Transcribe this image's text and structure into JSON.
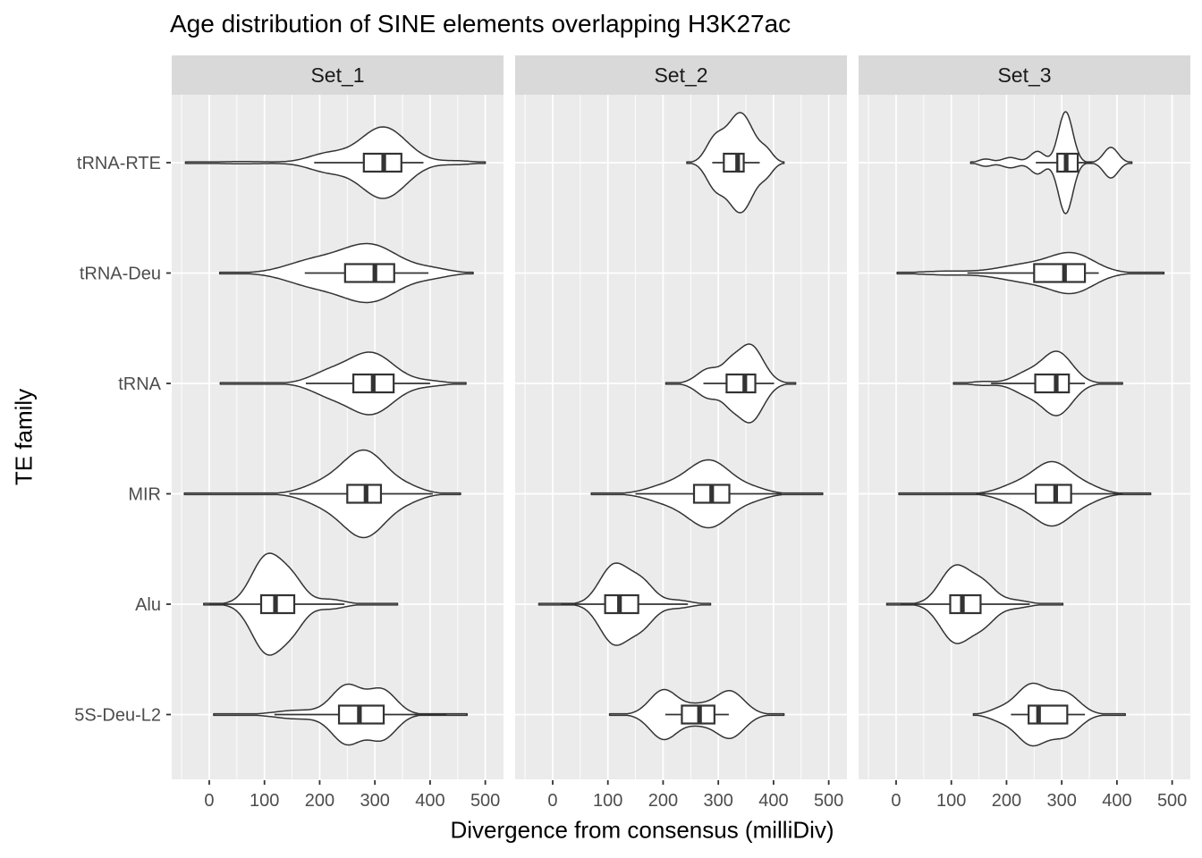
{
  "chart_data": {
    "type": "violin",
    "title": "Age distribution of SINE elements overlapping H3K27ac",
    "xlabel": "Divergence from consensus (milliDiv)",
    "ylabel": "TE family",
    "facets": [
      "Set_1",
      "Set_2",
      "Set_3"
    ],
    "categories": [
      "tRNA-RTE",
      "tRNA-Deu",
      "tRNA",
      "MIR",
      "Alu",
      "5S-Deu-L2"
    ],
    "x_ticks": [
      0,
      100,
      200,
      300,
      400,
      500
    ],
    "xlim": [
      -68,
      533
    ],
    "grid": {
      "major_every": 100,
      "minor_every": 50
    },
    "legend": "none",
    "colors": {
      "panel_bg": "#ebebeb",
      "strip_bg": "#d9d9d9",
      "grid": "#ffffff",
      "outline": "#333333",
      "violin_fill": "#ffffff",
      "tick_label": "#4d4d4d",
      "tick_mark": "#333333",
      "strip_text": "#1a1a1a",
      "title_text": "#000000"
    },
    "violins": [
      {
        "facet": "Set_1",
        "family": "tRNA-RTE",
        "range": [
          -43,
          500
        ],
        "peak_halfwidth": 40,
        "density": [
          [
            315,
            42,
            1.0
          ],
          [
            213,
            34,
            0.24
          ],
          [
            450,
            28,
            0.05
          ],
          [
            60,
            60,
            0.03
          ]
        ],
        "box": {
          "whisker_lo": 190,
          "q1": 280,
          "median": 316,
          "q3": 348,
          "whisker_hi": 388
        }
      },
      {
        "facet": "Set_1",
        "family": "tRNA-Deu",
        "range": [
          19,
          478
        ],
        "peak_halfwidth": 33,
        "density": [
          [
            290,
            52,
            1.0
          ],
          [
            185,
            48,
            0.4
          ],
          [
            405,
            32,
            0.13
          ]
        ],
        "box": {
          "whisker_lo": 173,
          "q1": 246,
          "median": 300,
          "q3": 335,
          "whisker_hi": 397
        }
      },
      {
        "facet": "Set_1",
        "family": "tRNA",
        "range": [
          20,
          465
        ],
        "peak_halfwidth": 35,
        "density": [
          [
            292,
            42,
            1.0
          ],
          [
            213,
            33,
            0.3
          ],
          [
            400,
            28,
            0.07
          ]
        ],
        "box": {
          "whisker_lo": 175,
          "q1": 261,
          "median": 297,
          "q3": 334,
          "whisker_hi": 400
        }
      },
      {
        "facet": "Set_1",
        "family": "MIR",
        "range": [
          -45,
          455
        ],
        "peak_halfwidth": 49,
        "density": [
          [
            281,
            40,
            1.0
          ],
          [
            203,
            36,
            0.2
          ],
          [
            362,
            28,
            0.12
          ]
        ],
        "box": {
          "whisker_lo": 145,
          "q1": 250,
          "median": 284,
          "q3": 311,
          "whisker_hi": 405
        }
      },
      {
        "facet": "Set_1",
        "family": "Alu",
        "range": [
          -10,
          341
        ],
        "peak_halfwidth": 57,
        "density": [
          [
            105,
            28,
            1.0
          ],
          [
            152,
            22,
            0.42
          ],
          [
            218,
            26,
            0.1
          ]
        ],
        "box": {
          "whisker_lo": 0,
          "q1": 94,
          "median": 120,
          "q3": 154,
          "whisker_hi": 245
        }
      },
      {
        "facet": "Set_1",
        "family": "5S-Deu-L2",
        "range": [
          8,
          467
        ],
        "peak_halfwidth": 34,
        "density": [
          [
            249,
            27,
            1.0
          ],
          [
            313,
            26,
            0.85
          ],
          [
            160,
            40,
            0.15
          ]
        ],
        "box": {
          "whisker_lo": 118,
          "q1": 235,
          "median": 272,
          "q3": 316,
          "whisker_hi": 430
        }
      },
      {
        "facet": "Set_2",
        "family": "tRNA-RTE",
        "range": [
          243,
          419
        ],
        "peak_halfwidth": 56,
        "density": [
          [
            340,
            24,
            1.0
          ],
          [
            293,
            16,
            0.42
          ],
          [
            388,
            12,
            0.18
          ]
        ],
        "box": {
          "whisker_lo": 289,
          "q1": 310,
          "median": 335,
          "q3": 346,
          "whisker_hi": 375
        }
      },
      {
        "facet": "Set_2",
        "family": "tRNA",
        "range": [
          205,
          440
        ],
        "peak_halfwidth": 44,
        "density": [
          [
            357,
            24,
            1.0
          ],
          [
            284,
            22,
            0.38
          ],
          [
            321,
            14,
            0.26
          ]
        ],
        "box": {
          "whisker_lo": 273,
          "q1": 315,
          "median": 348,
          "q3": 367,
          "whisker_hi": 401
        }
      },
      {
        "facet": "Set_2",
        "family": "MIR",
        "range": [
          70,
          489
        ],
        "peak_halfwidth": 38,
        "density": [
          [
            283,
            40,
            1.0
          ],
          [
            200,
            34,
            0.2
          ],
          [
            366,
            27,
            0.12
          ]
        ],
        "box": {
          "whisker_lo": 150,
          "q1": 256,
          "median": 288,
          "q3": 320,
          "whisker_hi": 415
        }
      },
      {
        "facet": "Set_2",
        "family": "Alu",
        "range": [
          -25,
          286
        ],
        "peak_halfwidth": 46,
        "density": [
          [
            111,
            26,
            1.0
          ],
          [
            161,
            23,
            0.55
          ],
          [
            226,
            24,
            0.1
          ]
        ],
        "box": {
          "whisker_lo": 15,
          "q1": 95,
          "median": 121,
          "q3": 155,
          "whisker_hi": 245
        }
      },
      {
        "facet": "Set_2",
        "family": "5S-Deu-L2",
        "range": [
          103,
          419
        ],
        "peak_halfwidth": 28,
        "density": [
          [
            201,
            25,
            1.0
          ],
          [
            321,
            26,
            0.95
          ],
          [
            262,
            25,
            0.35
          ]
        ],
        "box": {
          "whisker_lo": 204,
          "q1": 234,
          "median": 266,
          "q3": 293,
          "whisker_hi": 319
        }
      },
      {
        "facet": "Set_3",
        "family": "tRNA-RTE",
        "range": [
          135,
          427
        ],
        "peak_halfwidth": 57,
        "density": [
          [
            307,
            13,
            1.0
          ],
          [
            389,
            13,
            0.3
          ],
          [
            256,
            13,
            0.22
          ],
          [
            207,
            15,
            0.1
          ],
          [
            162,
            12,
            0.07
          ]
        ],
        "box": {
          "whisker_lo": 253,
          "q1": 292,
          "median": 308,
          "q3": 329,
          "whisker_hi": 355
        }
      },
      {
        "facet": "Set_3",
        "family": "tRNA-Deu",
        "range": [
          2,
          485
        ],
        "peak_halfwidth": 23,
        "density": [
          [
            320,
            40,
            1.0
          ],
          [
            235,
            50,
            0.45
          ],
          [
            90,
            45,
            0.1
          ]
        ],
        "box": {
          "whisker_lo": 129,
          "q1": 250,
          "median": 305,
          "q3": 342,
          "whisker_hi": 367
        }
      },
      {
        "facet": "Set_3",
        "family": "tRNA",
        "range": [
          104,
          410
        ],
        "peak_halfwidth": 36,
        "density": [
          [
            291,
            28,
            1.0
          ],
          [
            233,
            24,
            0.28
          ],
          [
            158,
            22,
            0.06
          ]
        ],
        "box": {
          "whisker_lo": 172,
          "q1": 252,
          "median": 290,
          "q3": 313,
          "whisker_hi": 342
        }
      },
      {
        "facet": "Set_3",
        "family": "MIR",
        "range": [
          5,
          461
        ],
        "peak_halfwidth": 36,
        "density": [
          [
            283,
            36,
            1.0
          ],
          [
            212,
            30,
            0.22
          ],
          [
            351,
            26,
            0.16
          ]
        ],
        "box": {
          "whisker_lo": 145,
          "q1": 253,
          "median": 289,
          "q3": 317,
          "whisker_hi": 410
        }
      },
      {
        "facet": "Set_3",
        "family": "Alu",
        "range": [
          -17,
          302
        ],
        "peak_halfwidth": 44,
        "density": [
          [
            107,
            27,
            1.0
          ],
          [
            158,
            23,
            0.5
          ],
          [
            216,
            24,
            0.1
          ]
        ],
        "box": {
          "whisker_lo": 8,
          "q1": 98,
          "median": 120,
          "q3": 153,
          "whisker_hi": 242
        }
      },
      {
        "facet": "Set_3",
        "family": "5S-Deu-L2",
        "range": [
          140,
          415
        ],
        "peak_halfwidth": 35,
        "density": [
          [
            245,
            28,
            1.0
          ],
          [
            307,
            26,
            0.68
          ],
          [
            186,
            20,
            0.15
          ]
        ],
        "box": {
          "whisker_lo": 208,
          "q1": 240,
          "median": 258,
          "q3": 310,
          "whisker_hi": 342
        }
      }
    ]
  }
}
